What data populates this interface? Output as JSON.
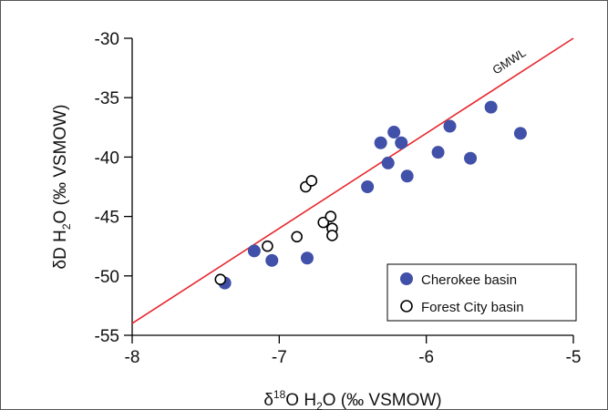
{
  "chart_data": {
    "type": "scatter",
    "xlabel": {
      "prefix": "δ",
      "sup": "18",
      "mid": "O H",
      "sub": "2",
      "suffix": "O (‰ VSMOW)"
    },
    "ylabel": {
      "prefix": "δD H",
      "sub": "2",
      "suffix": "O (‰ VSMOW)"
    },
    "xlim": [
      -8,
      -5
    ],
    "ylim": [
      -55,
      -30
    ],
    "x_ticks": [
      -8,
      -7,
      -6,
      -5
    ],
    "x_tick_labels": [
      "-8",
      "-7",
      "-6",
      "-5"
    ],
    "y_ticks": [
      -55,
      -50,
      -45,
      -40,
      -35,
      -30
    ],
    "y_tick_labels": [
      "-55",
      "-50",
      "-45",
      "-40",
      "-35",
      "-30"
    ],
    "grid": false,
    "legend": "bottom-right",
    "reference_line": {
      "name": "GMWL",
      "slope": 8,
      "intercept": 10,
      "color": "#e8262d"
    },
    "series": [
      {
        "name": "Cherokee basin",
        "marker": "filled-circle",
        "color": "#4150a8",
        "points": [
          {
            "x": -7.37,
            "y": -50.6
          },
          {
            "x": -7.17,
            "y": -47.9
          },
          {
            "x": -7.05,
            "y": -48.7
          },
          {
            "x": -6.81,
            "y": -48.5
          },
          {
            "x": -6.4,
            "y": -42.5
          },
          {
            "x": -6.31,
            "y": -38.8
          },
          {
            "x": -6.26,
            "y": -40.5
          },
          {
            "x": -6.22,
            "y": -37.9
          },
          {
            "x": -6.17,
            "y": -38.8
          },
          {
            "x": -6.13,
            "y": -41.6
          },
          {
            "x": -5.92,
            "y": -39.6
          },
          {
            "x": -5.84,
            "y": -37.4
          },
          {
            "x": -5.7,
            "y": -40.1
          },
          {
            "x": -5.56,
            "y": -35.8
          },
          {
            "x": -5.36,
            "y": -38.0
          }
        ]
      },
      {
        "name": "Forest City basin",
        "marker": "open-circle",
        "color": "#000000",
        "points": [
          {
            "x": -7.4,
            "y": -50.3
          },
          {
            "x": -7.08,
            "y": -47.5
          },
          {
            "x": -6.88,
            "y": -46.7
          },
          {
            "x": -6.82,
            "y": -42.5
          },
          {
            "x": -6.78,
            "y": -42.0
          },
          {
            "x": -6.7,
            "y": -45.5
          },
          {
            "x": -6.65,
            "y": -45.0
          },
          {
            "x": -6.64,
            "y": -46.0
          },
          {
            "x": -6.64,
            "y": -46.6
          }
        ]
      }
    ]
  }
}
